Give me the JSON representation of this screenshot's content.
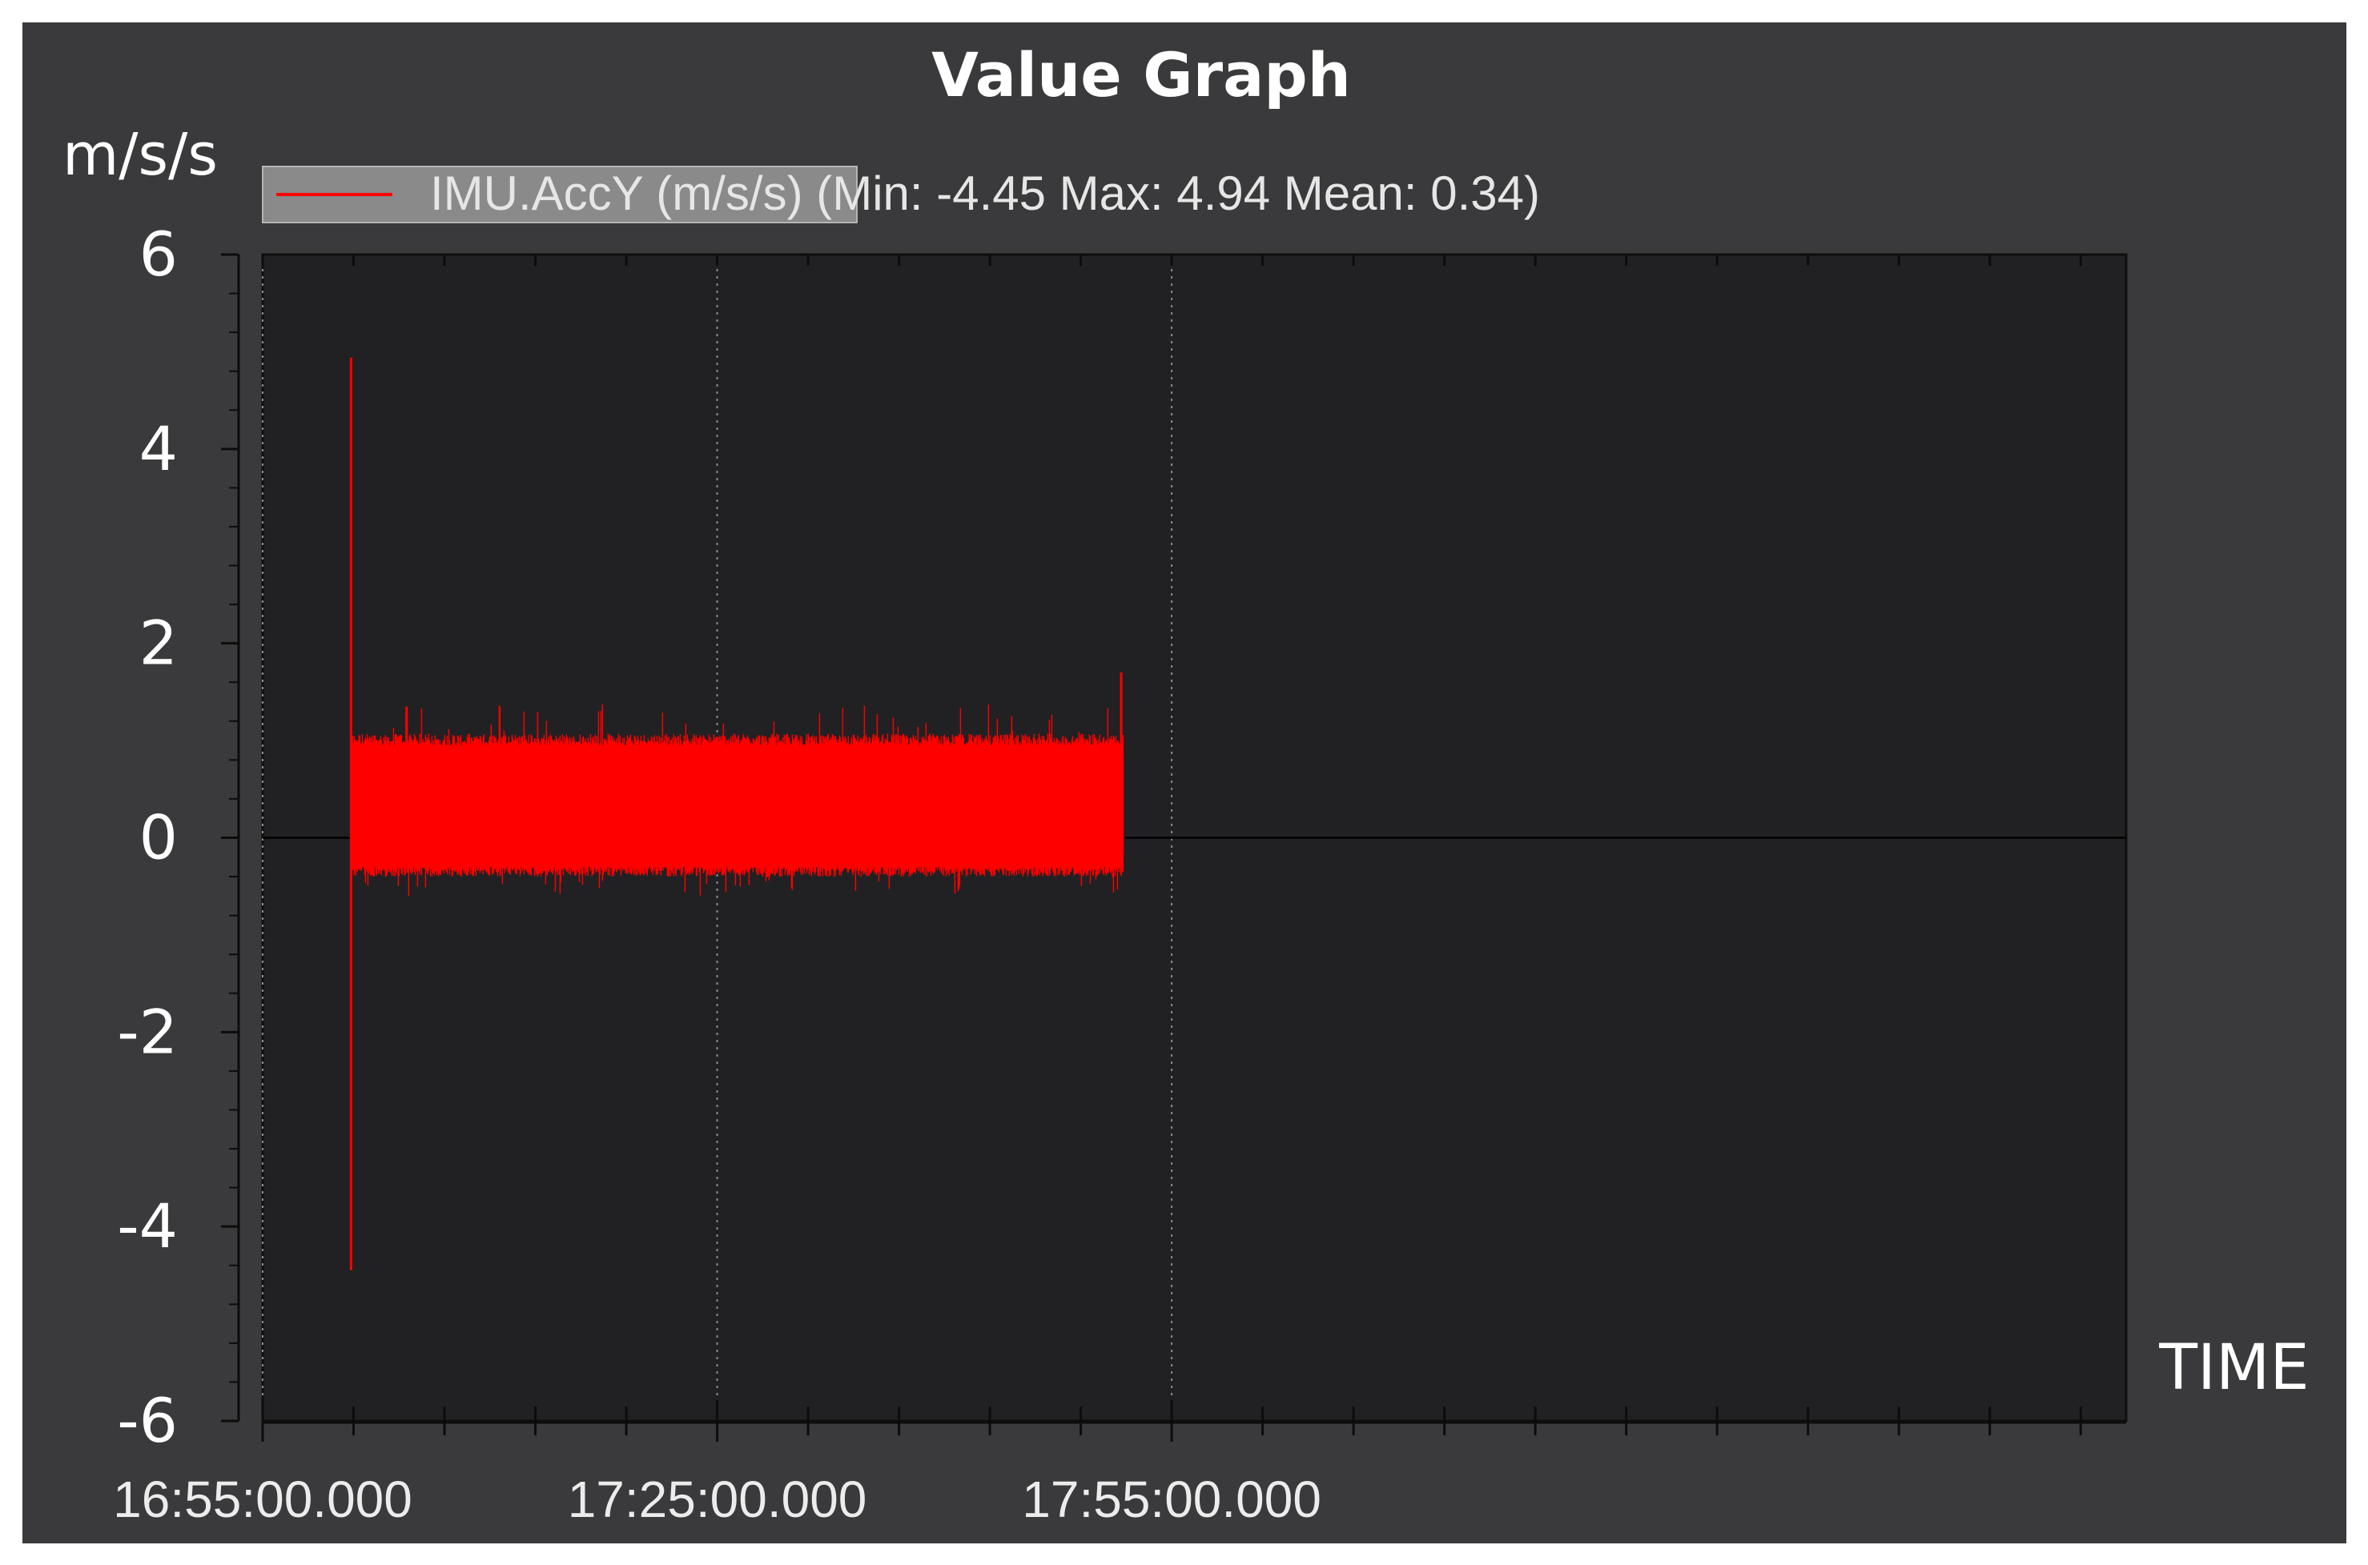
{
  "chart_data": {
    "type": "line",
    "title": "Value Graph",
    "ylabel": "m/s/s",
    "xlabel": "TIME",
    "ylim": [
      -6,
      6
    ],
    "yticks": [
      "6",
      "4",
      "2",
      "0",
      "-2",
      "-4",
      "-6"
    ],
    "xlim": [
      "16:55:00.000",
      "18:58:00.000"
    ],
    "xticks": [
      "16:55:00.000",
      "17:25:00.000",
      "17:55:00.000"
    ],
    "grid": "vertical dotted at labeled x ticks",
    "legend": {
      "placement": "top-left",
      "label": "IMU.AccY (m/s/s) ",
      "stats": "(Min: -4.45 Max: 4.94 Mean: 0.34)"
    },
    "series": [
      {
        "name": "IMU.AccY (m/s/s)",
        "color": "#ff0000",
        "start": "17:00:50",
        "end": "17:51:50",
        "min": -4.45,
        "max": 4.94,
        "mean": 0.34,
        "band": [
          -0.3,
          0.95
        ],
        "spikes": [
          {
            "t": "17:00:50",
            "y": 4.94
          },
          {
            "t": "17:00:50",
            "y": -4.45
          },
          {
            "t": "17:51:40",
            "y": 1.7
          },
          {
            "t": "17:04:30",
            "y": 1.35
          }
        ]
      }
    ]
  },
  "colors": {
    "frame": "#3a3a3c",
    "plot_bg": "#212123",
    "series": "#ff0000"
  }
}
